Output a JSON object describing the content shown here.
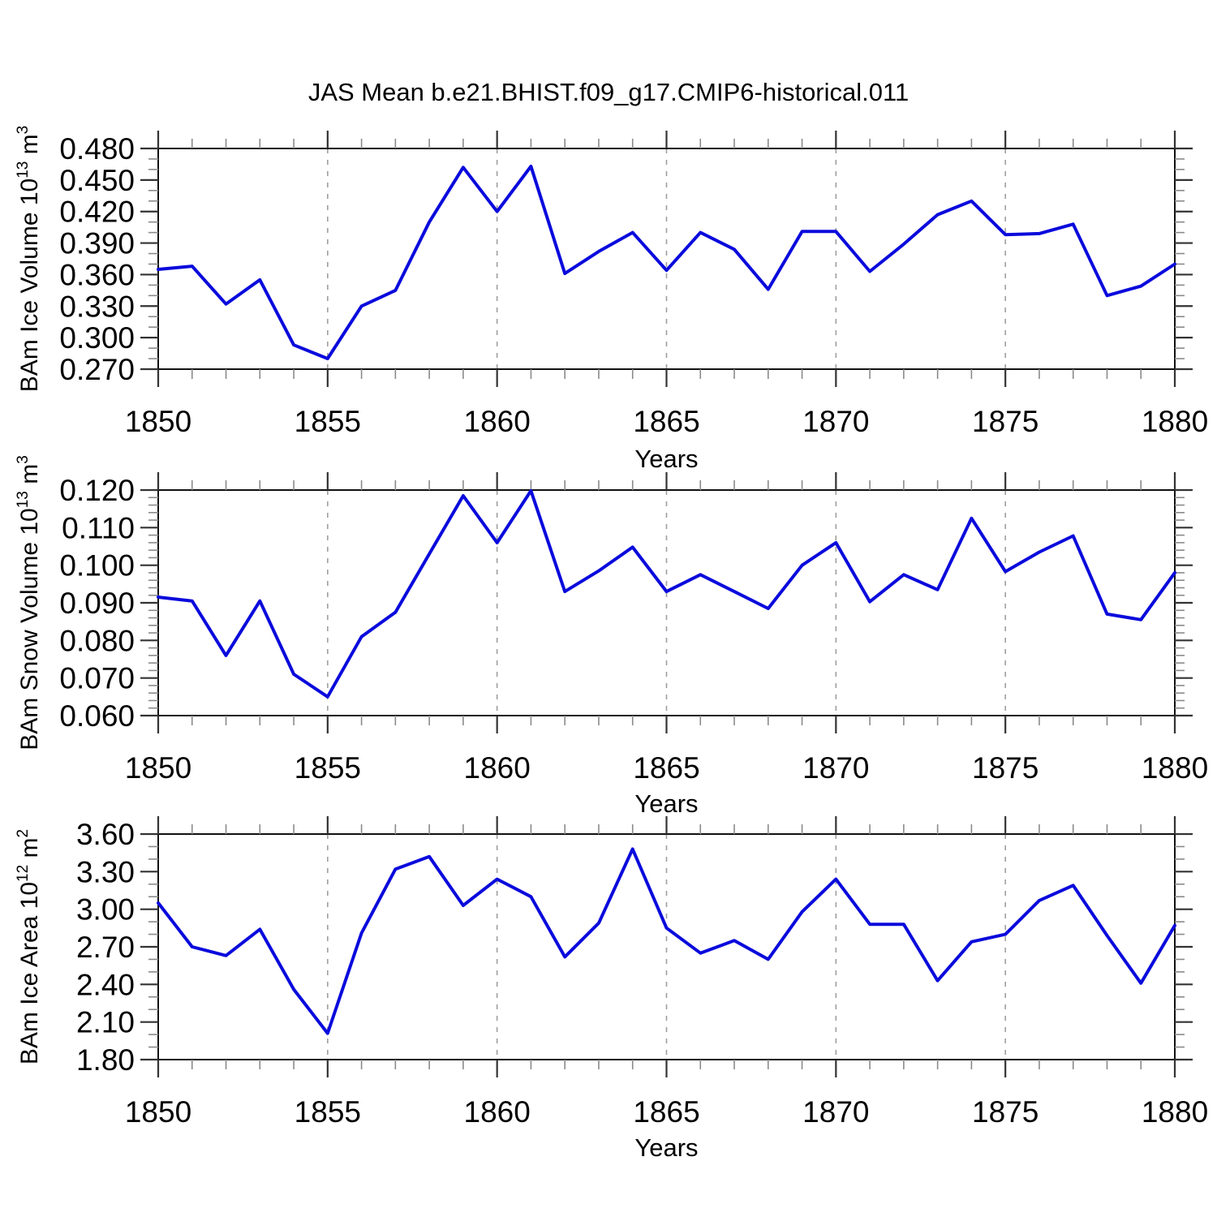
{
  "title": "JAS Mean b.e21.BHIST.f09_g17.CMIP6-historical.011",
  "colors": {
    "line": "#0a0adc",
    "grid": "#9e9e9e",
    "frame": "#111111",
    "major_tick": "#333333",
    "minor_tick": "#8a8a8a",
    "text": "#000000"
  },
  "chart_data": [
    {
      "type": "line",
      "name": "BAm Ice Volume",
      "title": "JAS Mean b.e21.BHIST.f09_g17.CMIP6-historical.011",
      "ylabel": "BAm Ice Volume 10^13 m^3",
      "ylabel_parts": {
        "base": "BAm Ice Volume 10",
        "exp": "13",
        "unit": " m",
        "unit_exp": "3"
      },
      "xlabel": "Years",
      "xlim": [
        1850,
        1880
      ],
      "ylim": [
        0.27,
        0.48
      ],
      "yticks": [
        0.27,
        0.3,
        0.33,
        0.36,
        0.39,
        0.42,
        0.45,
        0.48
      ],
      "ytick_labels": [
        "0.270",
        "0.300",
        "0.330",
        "0.360",
        "0.390",
        "0.420",
        "0.450",
        "0.480"
      ],
      "yminor_step": 0.01,
      "xticks": [
        1850,
        1855,
        1860,
        1865,
        1870,
        1875,
        1880
      ],
      "xtick_labels": [
        "1850",
        "1855",
        "1860",
        "1865",
        "1870",
        "1875",
        "1880"
      ],
      "xminor_step": 1,
      "grid_x": [
        1855,
        1860,
        1865,
        1870,
        1875
      ],
      "x": [
        1850,
        1851,
        1852,
        1853,
        1854,
        1855,
        1856,
        1857,
        1858,
        1859,
        1860,
        1861,
        1862,
        1863,
        1864,
        1865,
        1866,
        1867,
        1868,
        1869,
        1870,
        1871,
        1872,
        1873,
        1874,
        1875,
        1876,
        1877,
        1878,
        1879,
        1880
      ],
      "values": [
        0.365,
        0.368,
        0.332,
        0.355,
        0.293,
        0.28,
        0.33,
        0.345,
        0.41,
        0.462,
        0.42,
        0.463,
        0.361,
        0.382,
        0.4,
        0.364,
        0.4,
        0.384,
        0.346,
        0.401,
        0.401,
        0.363,
        0.389,
        0.417,
        0.43,
        0.398,
        0.399,
        0.408,
        0.34,
        0.349,
        0.37
      ]
    },
    {
      "type": "line",
      "name": "BAm Snow Volume",
      "title": "JAS Mean b.e21.BHIST.f09_g17.CMIP6-historical.011",
      "ylabel": "BAm Snow Volume 10^13 m^3",
      "ylabel_parts": {
        "base": "BAm Snow Volume 10",
        "exp": "13",
        "unit": " m",
        "unit_exp": "3"
      },
      "xlabel": "Years",
      "xlim": [
        1850,
        1880
      ],
      "ylim": [
        0.06,
        0.12
      ],
      "yticks": [
        0.06,
        0.07,
        0.08,
        0.09,
        0.1,
        0.11,
        0.12
      ],
      "ytick_labels": [
        "0.060",
        "0.070",
        "0.080",
        "0.090",
        "0.100",
        "0.110",
        "0.120"
      ],
      "yminor_step": 0.002,
      "xticks": [
        1850,
        1855,
        1860,
        1865,
        1870,
        1875,
        1880
      ],
      "xtick_labels": [
        "1850",
        "1855",
        "1860",
        "1865",
        "1870",
        "1875",
        "1880"
      ],
      "xminor_step": 1,
      "grid_x": [
        1855,
        1860,
        1865,
        1870,
        1875
      ],
      "x": [
        1850,
        1851,
        1852,
        1853,
        1854,
        1855,
        1856,
        1857,
        1858,
        1859,
        1860,
        1861,
        1862,
        1863,
        1864,
        1865,
        1866,
        1867,
        1868,
        1869,
        1870,
        1871,
        1872,
        1873,
        1874,
        1875,
        1876,
        1877,
        1878,
        1879,
        1880
      ],
      "values": [
        0.0915,
        0.0905,
        0.076,
        0.0905,
        0.071,
        0.065,
        0.081,
        0.0875,
        0.103,
        0.1185,
        0.106,
        0.1198,
        0.093,
        0.0985,
        0.1048,
        0.093,
        0.0975,
        0.093,
        0.0885,
        0.1,
        0.106,
        0.0903,
        0.0975,
        0.0935,
        0.1125,
        0.0983,
        0.1035,
        0.1078,
        0.087,
        0.0855,
        0.098
      ]
    },
    {
      "type": "line",
      "name": "BAm Ice Area",
      "title": "JAS Mean b.e21.BHIST.f09_g17.CMIP6-historical.011",
      "ylabel": "BAm Ice Area 10^12 m^2",
      "ylabel_parts": {
        "base": "BAm Ice Area 10",
        "exp": "12",
        "unit": " m",
        "unit_exp": "2"
      },
      "xlabel": "Years",
      "xlim": [
        1850,
        1880
      ],
      "ylim": [
        1.8,
        3.6
      ],
      "yticks": [
        1.8,
        2.1,
        2.4,
        2.7,
        3.0,
        3.3,
        3.6
      ],
      "ytick_labels": [
        "1.80",
        "2.10",
        "2.40",
        "2.70",
        "3.00",
        "3.30",
        "3.60"
      ],
      "yminor_step": 0.1,
      "xticks": [
        1850,
        1855,
        1860,
        1865,
        1870,
        1875,
        1880
      ],
      "xtick_labels": [
        "1850",
        "1855",
        "1860",
        "1865",
        "1870",
        "1875",
        "1880"
      ],
      "xminor_step": 1,
      "grid_x": [
        1855,
        1860,
        1865,
        1870,
        1875
      ],
      "x": [
        1850,
        1851,
        1852,
        1853,
        1854,
        1855,
        1856,
        1857,
        1858,
        1859,
        1860,
        1861,
        1862,
        1863,
        1864,
        1865,
        1866,
        1867,
        1868,
        1869,
        1870,
        1871,
        1872,
        1873,
        1874,
        1875,
        1876,
        1877,
        1878,
        1879,
        1880
      ],
      "values": [
        3.05,
        2.7,
        2.63,
        2.84,
        2.36,
        2.01,
        2.81,
        3.32,
        3.42,
        3.03,
        3.24,
        3.1,
        2.62,
        2.89,
        3.48,
        2.85,
        2.65,
        2.75,
        2.6,
        2.98,
        3.24,
        2.88,
        2.88,
        2.43,
        2.74,
        2.8,
        3.07,
        3.19,
        2.79,
        2.41,
        2.87
      ]
    }
  ]
}
